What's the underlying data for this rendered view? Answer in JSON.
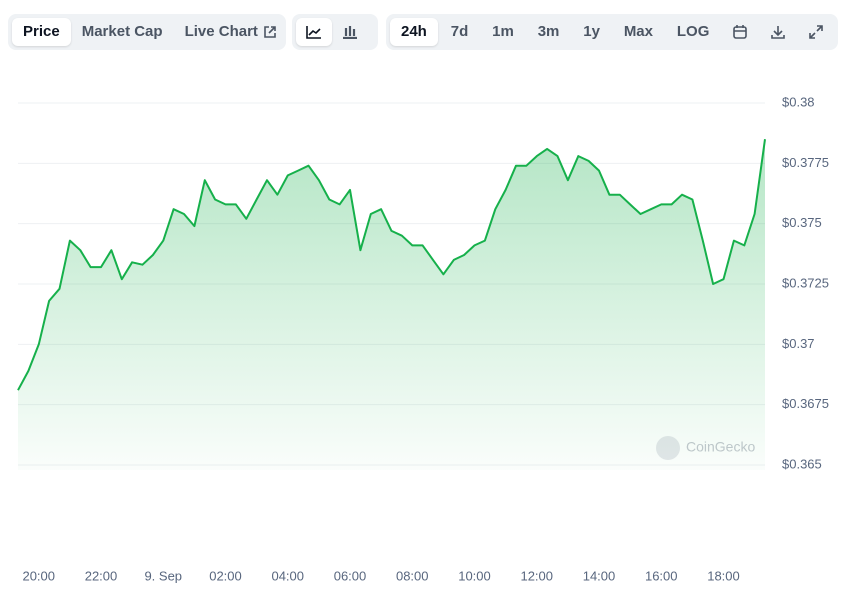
{
  "toolbar": {
    "tabs": [
      "Price",
      "Market Cap",
      "Live Chart"
    ],
    "ranges": [
      "24h",
      "7d",
      "1m",
      "3m",
      "1y",
      "Max",
      "LOG"
    ]
  },
  "watermark": "CoinGecko",
  "chart_data": {
    "type": "line",
    "color": "#16b04b",
    "grid": true,
    "categories": [
      null,
      null,
      "20:00",
      null,
      null,
      null,
      null,
      null,
      "22:00",
      null,
      null,
      null,
      null,
      null,
      "9. Sep",
      null,
      null,
      null,
      null,
      null,
      "02:00",
      null,
      null,
      null,
      null,
      null,
      "04:00",
      null,
      null,
      null,
      null,
      null,
      "06:00",
      null,
      null,
      null,
      null,
      null,
      "08:00",
      null,
      null,
      null,
      null,
      null,
      "10:00",
      null,
      null,
      null,
      null,
      null,
      "12:00",
      null,
      null,
      null,
      null,
      null,
      "14:00",
      null,
      null,
      null,
      null,
      null,
      "16:00",
      null,
      null,
      null,
      null,
      null,
      "18:00",
      null,
      null,
      null,
      null
    ],
    "values": [
      0.3681,
      0.3689,
      0.37,
      0.3718,
      0.3723,
      0.3743,
      0.3739,
      0.3732,
      0.3732,
      0.3739,
      0.3727,
      0.3734,
      0.3733,
      0.3737,
      0.3743,
      0.3756,
      0.3754,
      0.3749,
      0.3768,
      0.376,
      0.3758,
      0.3758,
      0.3752,
      0.376,
      0.3768,
      0.3762,
      0.377,
      0.3772,
      0.3774,
      0.3768,
      0.376,
      0.3758,
      0.3764,
      0.3739,
      0.3754,
      0.3756,
      0.3747,
      0.3745,
      0.3741,
      0.3741,
      0.3735,
      0.3729,
      0.3735,
      0.3737,
      0.3741,
      0.3743,
      0.3756,
      0.3764,
      0.3774,
      0.3774,
      0.3778,
      0.3781,
      0.3778,
      0.3768,
      0.3778,
      0.3776,
      0.3772,
      0.3762,
      0.3762,
      0.3758,
      0.3754,
      0.3756,
      0.3758,
      0.3758,
      0.3762,
      0.376,
      0.3743,
      0.3725,
      0.3727,
      0.3743,
      0.3741,
      0.3754,
      0.3785
    ],
    "ylim": [
      0.365,
      0.38
    ],
    "yticks": [
      {
        "value": 0.38,
        "label": "$0.38"
      },
      {
        "value": 0.3775,
        "label": "$0.3775"
      },
      {
        "value": 0.375,
        "label": "$0.375"
      },
      {
        "value": 0.3725,
        "label": "$0.3725"
      },
      {
        "value": 0.37,
        "label": "$0.37"
      },
      {
        "value": 0.3675,
        "label": "$0.3675"
      },
      {
        "value": 0.365,
        "label": "$0.365"
      }
    ]
  }
}
